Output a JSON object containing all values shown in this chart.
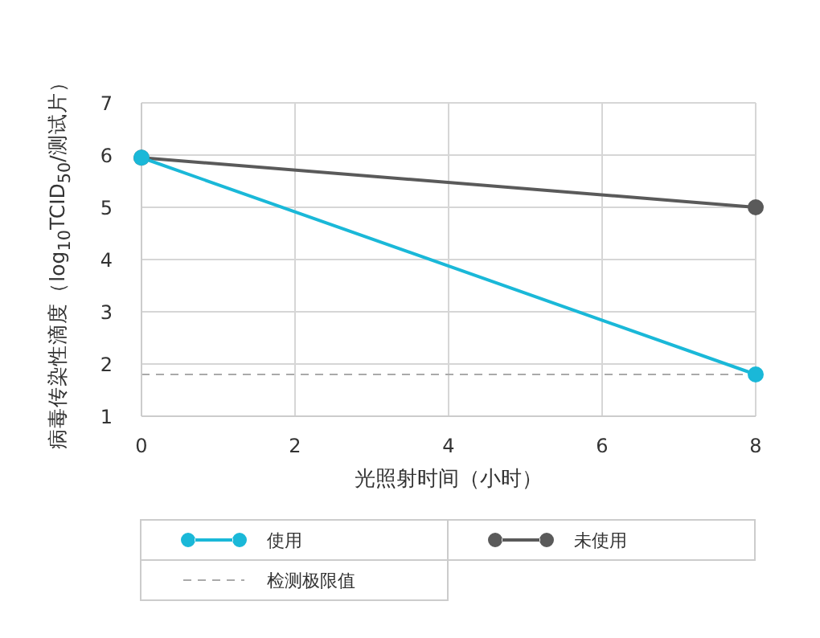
{
  "chart_data": {
    "type": "line",
    "xlabel": "光照射时间（小时）",
    "ylabel": "病毒传染性滴度（log$_{10}$TCID$_{50}$/测试片）",
    "x": [
      0,
      8
    ],
    "series": [
      {
        "name": "使用",
        "color": "#1ab8d8",
        "values": [
          5.95,
          1.8
        ]
      },
      {
        "name": "未使用",
        "color": "#5a5a5a",
        "values": [
          5.95,
          5.0
        ]
      }
    ],
    "xlim": [
      0,
      8
    ],
    "xticks": [
      0,
      2,
      4,
      6,
      8
    ],
    "ylim": [
      1,
      7
    ],
    "yticks": [
      1,
      2,
      3,
      4,
      5,
      6,
      7
    ],
    "ref_lines": [
      {
        "axis": "y",
        "value": 1.8,
        "label": "检测极限值",
        "color": "#aaaaaa",
        "line_style": "dashed"
      }
    ],
    "grid": true,
    "legend": "bottom",
    "marker": "circle",
    "line_style": "solid"
  }
}
